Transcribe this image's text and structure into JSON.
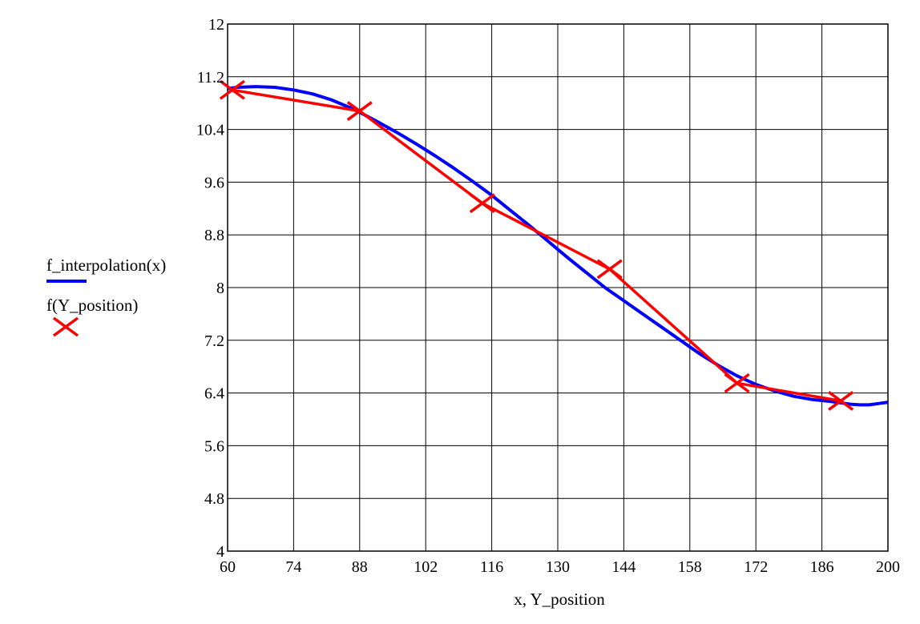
{
  "chart_data": {
    "type": "line",
    "xlabel": "x, Y_position",
    "xlim": [
      60,
      200
    ],
    "ylim": [
      4,
      12
    ],
    "x_ticks": [
      60,
      74,
      88,
      102,
      116,
      130,
      144,
      158,
      172,
      186,
      200
    ],
    "y_ticks": [
      4,
      4.8,
      5.6,
      6.4,
      7.2,
      8,
      8.8,
      9.6,
      10.4,
      11.2,
      12
    ],
    "grid": true,
    "legend_position": "left",
    "series": [
      {
        "name": "f_interpolation(x)",
        "color": "#0000ff",
        "style": "line",
        "x": [
          60,
          62,
          66,
          70,
          74,
          78,
          82,
          86,
          88,
          92,
          96,
          100,
          104,
          108,
          112,
          116,
          120,
          124,
          128,
          132,
          136,
          140,
          144,
          148,
          152,
          156,
          160,
          164,
          168,
          172,
          176,
          180,
          184,
          188,
          190,
          192,
          194,
          196,
          198,
          200
        ],
        "y": [
          11.02,
          11.04,
          11.05,
          11.04,
          11.0,
          10.94,
          10.85,
          10.73,
          10.66,
          10.51,
          10.35,
          10.18,
          10.0,
          9.81,
          9.61,
          9.4,
          9.17,
          8.94,
          8.7,
          8.46,
          8.23,
          8.0,
          7.8,
          7.6,
          7.4,
          7.2,
          7.0,
          6.82,
          6.66,
          6.53,
          6.43,
          6.35,
          6.3,
          6.27,
          6.25,
          6.23,
          6.22,
          6.22,
          6.24,
          6.26
        ]
      },
      {
        "name": "f(Y_position)",
        "color": "#ff0000",
        "style": "line-with-x-markers",
        "x": [
          61,
          88,
          114,
          141,
          168,
          190
        ],
        "y": [
          11.0,
          10.68,
          9.28,
          8.28,
          6.55,
          6.28
        ]
      }
    ]
  }
}
